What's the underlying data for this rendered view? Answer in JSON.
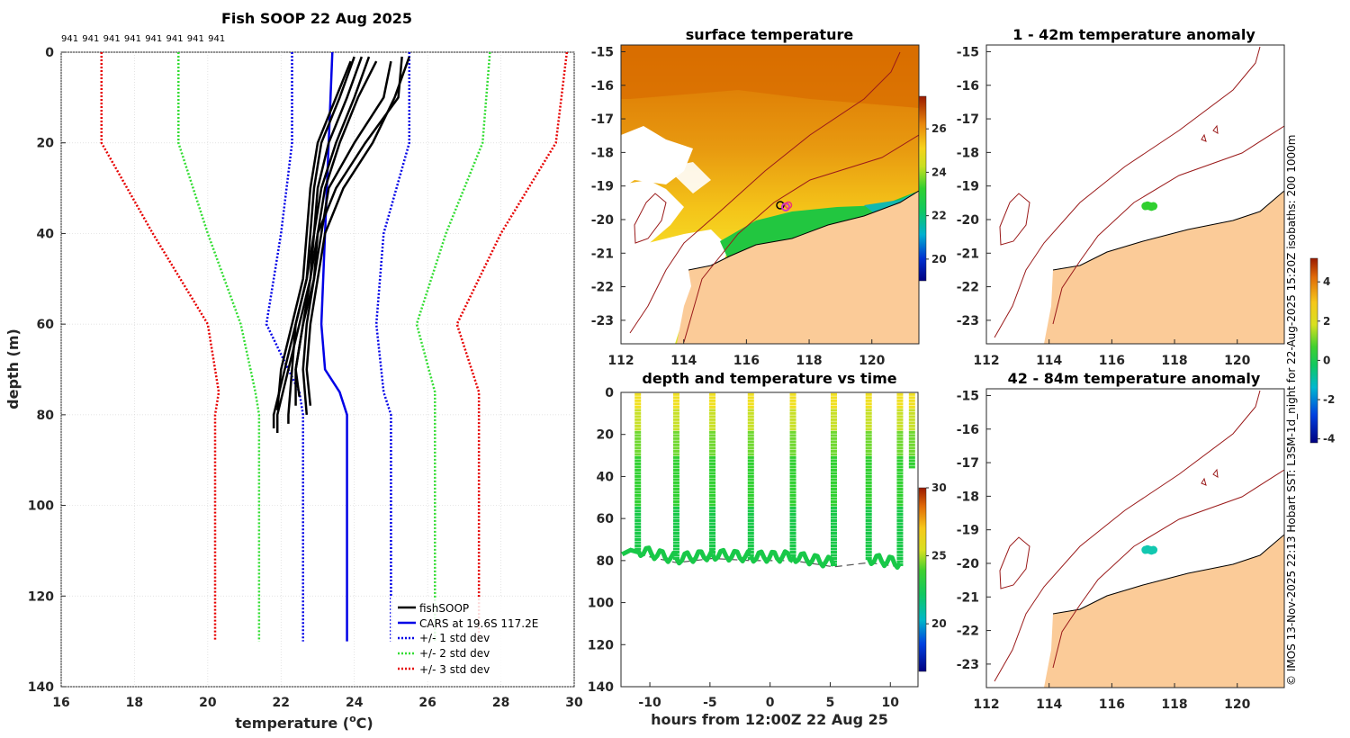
{
  "colors": {
    "fishSOOP": "#000000",
    "cars": "#0000e6",
    "std1": "#0000e6",
    "std2": "#33dd33",
    "std3": "#e60000",
    "land": "#fbcb98",
    "isobath": "#b22222",
    "grid": "#d9d9d9"
  },
  "chart_data": [
    {
      "id": "profile",
      "type": "line",
      "title": "Fish SOOP 22 Aug 2025",
      "xlabel": "temperature (",
      "xlabel_sup": "o",
      "xlabel_tail": "C)",
      "ylabel": "depth (m)",
      "xlim": [
        16,
        30
      ],
      "ylim": [
        140,
        0
      ],
      "xticks": [
        "16",
        "18",
        "20",
        "22",
        "24",
        "26",
        "28",
        "30"
      ],
      "yticks": [
        "0",
        "20",
        "40",
        "60",
        "80",
        "100",
        "120",
        "140"
      ],
      "cruise_labels": [
        "941",
        "941",
        "941",
        "941",
        "941",
        "941",
        "941",
        "941"
      ],
      "legend": [
        {
          "label": "fishSOOP",
          "style": "solid",
          "key": "fishSOOP"
        },
        {
          "label": "CARS at 19.6S 117.2E",
          "style": "solid",
          "key": "cars"
        },
        {
          "label": "+/- 1 std dev",
          "style": "dotted",
          "key": "std1"
        },
        {
          "label": "+/- 2 std dev",
          "style": "dotted",
          "key": "std2"
        },
        {
          "label": "+/- 3 std dev",
          "style": "dotted",
          "key": "std3"
        }
      ],
      "cars": {
        "depth": [
          0,
          20,
          40,
          60,
          70,
          75,
          80,
          130
        ],
        "temp": [
          23.4,
          23.3,
          23.2,
          23.1,
          23.2,
          23.6,
          23.8,
          23.8
        ]
      },
      "std_bands": [
        {
          "key": "std1",
          "left": [
            22.3,
            22.3,
            22.0,
            21.6,
            22.5,
            22.6,
            22.6
          ],
          "right": [
            25.5,
            25.5,
            24.8,
            24.6,
            24.8,
            25.0,
            25.0
          ]
        },
        {
          "key": "std2",
          "left": [
            19.2,
            19.2,
            20.0,
            20.9,
            21.3,
            21.4,
            21.4
          ],
          "right": [
            27.7,
            27.5,
            26.5,
            25.7,
            26.2,
            26.2,
            26.2
          ]
        },
        {
          "key": "std3",
          "left": [
            17.1,
            17.1,
            18.5,
            20.0,
            20.3,
            20.2,
            20.2
          ],
          "right": [
            29.8,
            29.5,
            28.0,
            26.8,
            27.4,
            27.4,
            27.4
          ]
        }
      ],
      "std_depths": [
        0,
        20,
        40,
        60,
        75,
        80,
        130
      ],
      "profiles": [
        {
          "depth": [
            1,
            10,
            20,
            30,
            40,
            50,
            60,
            70,
            80,
            83
          ],
          "temp": [
            24.0,
            23.6,
            23.1,
            22.9,
            22.8,
            22.7,
            22.4,
            22.1,
            21.8,
            21.8
          ]
        },
        {
          "depth": [
            1,
            10,
            20,
            30,
            40,
            50,
            60,
            70,
            80,
            84
          ],
          "temp": [
            24.2,
            23.8,
            23.3,
            23.0,
            22.9,
            22.8,
            22.5,
            22.2,
            21.9,
            21.9
          ]
        },
        {
          "depth": [
            1,
            10,
            20,
            30,
            40,
            50,
            60,
            70,
            80,
            82
          ],
          "temp": [
            24.4,
            24.0,
            23.5,
            23.1,
            22.9,
            22.7,
            22.4,
            22.3,
            22.2,
            22.2
          ]
        },
        {
          "depth": [
            2,
            10,
            20,
            30,
            40,
            50,
            60,
            70,
            78
          ],
          "temp": [
            24.6,
            24.1,
            23.6,
            23.2,
            23.0,
            22.8,
            22.6,
            22.4,
            22.4
          ]
        },
        {
          "depth": [
            2,
            10,
            20,
            30,
            40,
            50,
            60,
            70,
            79
          ],
          "temp": [
            23.9,
            23.5,
            23.0,
            22.8,
            22.7,
            22.6,
            22.3,
            22.0,
            21.9
          ]
        },
        {
          "depth": [
            1,
            10,
            20,
            30,
            40,
            50,
            60,
            70,
            80
          ],
          "temp": [
            25.3,
            25.2,
            24.3,
            23.5,
            23.0,
            22.9,
            22.7,
            22.6,
            22.7
          ]
        },
        {
          "depth": [
            1,
            10,
            20,
            30,
            40,
            50,
            60,
            70,
            78
          ],
          "temp": [
            25.5,
            25.1,
            24.5,
            23.7,
            23.2,
            23.0,
            22.8,
            22.7,
            22.8
          ]
        },
        {
          "depth": [
            2,
            10,
            20,
            30,
            40,
            50,
            60,
            70,
            76
          ],
          "temp": [
            25.0,
            24.8,
            24.0,
            23.3,
            23.1,
            22.9,
            22.6,
            22.4,
            22.5
          ]
        }
      ]
    },
    {
      "id": "surface",
      "type": "heatmap",
      "title": "surface temperature",
      "xticks": [
        "112",
        "114",
        "116",
        "118",
        "120"
      ],
      "yticks": [
        "-15",
        "-16",
        "-17",
        "-18",
        "-19",
        "-20",
        "-21",
        "-22",
        "-23"
      ],
      "xlim": [
        112,
        121.5
      ],
      "ylim": [
        -23.7,
        -14.8
      ],
      "colorbar": {
        "min": 19,
        "max": 27.5,
        "ticks": [
          "20",
          "22",
          "24",
          "26"
        ],
        "tick_values": [
          20,
          22,
          24,
          26
        ]
      }
    },
    {
      "id": "anom1",
      "type": "heatmap",
      "title": "1 - 42m temperature anomaly",
      "xticks": [
        "112",
        "114",
        "116",
        "118",
        "120"
      ],
      "yticks": [
        "-15",
        "-16",
        "-17",
        "-18",
        "-19",
        "-20",
        "-21",
        "-22",
        "-23"
      ],
      "xlim": [
        112,
        121.5
      ],
      "ylim": [
        -23.7,
        -14.8
      ],
      "points": [
        {
          "lon": 117.2,
          "lat": -19.6,
          "anomaly": 0.3
        }
      ]
    },
    {
      "id": "anom2",
      "type": "heatmap",
      "title": "42 - 84m temperature anomaly",
      "xticks": [
        "112",
        "114",
        "116",
        "118",
        "120"
      ],
      "yticks": [
        "-15",
        "-16",
        "-17",
        "-18",
        "-19",
        "-20",
        "-21",
        "-22",
        "-23"
      ],
      "xlim": [
        112,
        121.5
      ],
      "ylim": [
        -23.7,
        -14.8
      ],
      "points": [
        {
          "lon": 117.2,
          "lat": -19.6,
          "anomaly": -1.2
        }
      ],
      "colorbar": {
        "min": -4.2,
        "max": 5.2,
        "ticks": [
          "4",
          "2",
          "0",
          "-2",
          "-4"
        ],
        "tick_values": [
          4,
          2,
          0,
          -2,
          -4
        ]
      }
    },
    {
      "id": "timeseries",
      "type": "scatter",
      "title": "depth and temperature vs time",
      "xlabel": "hours from 12:00Z 22 Aug 25",
      "xlim": [
        -12.4,
        12.3
      ],
      "ylim": [
        140,
        0
      ],
      "xticks": [
        "-10",
        "-5",
        "0",
        "5",
        "10"
      ],
      "yticks": [
        "0",
        "20",
        "40",
        "60",
        "80",
        "100",
        "120",
        "140"
      ],
      "colorbar": {
        "min": 16.5,
        "max": 30,
        "ticks": [
          "30",
          "25",
          "20"
        ],
        "tick_values": [
          30,
          25,
          20
        ]
      },
      "casts": [
        -11.0,
        -7.8,
        -4.8,
        -1.6,
        1.9,
        5.3,
        8.2,
        10.8,
        11.8
      ],
      "bottom_depth": [
        76,
        80,
        78,
        79,
        79,
        82,
        80,
        82,
        36
      ]
    }
  ],
  "footer": {
    "credit": "© IMOS 13-Nov-2025 22:13 Hobart SST: L3SM-1d_night for 22-Aug-2025  15:20Z isobaths: 200  1000m"
  }
}
